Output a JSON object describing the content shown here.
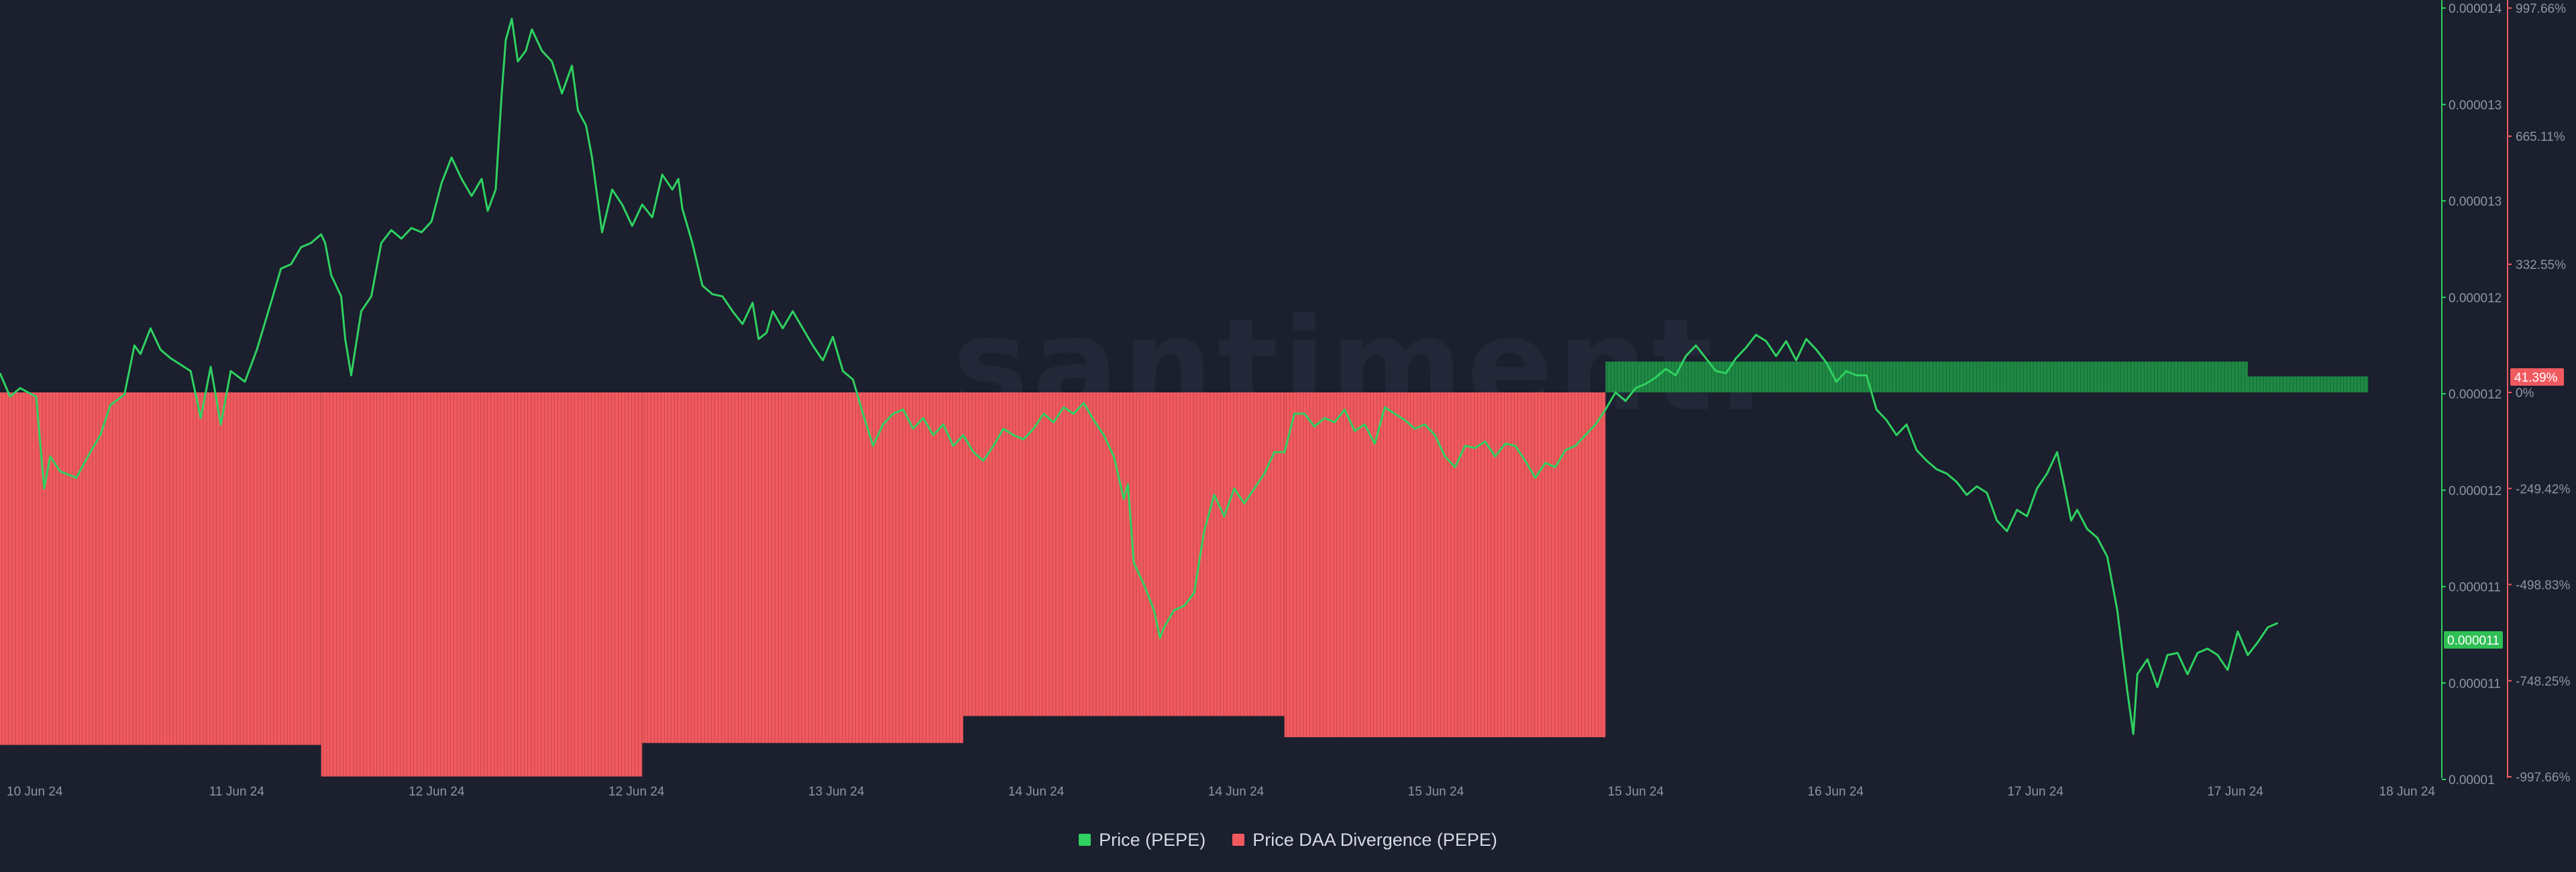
{
  "chart_data": {
    "type": "bar+line",
    "watermark": "santiment.",
    "colors": {
      "price": "#2fd160",
      "divergence_negative": "#f05a5f",
      "divergence_positive": "#1f8a44",
      "background": "#1b1f2e",
      "price_badge": "#2fbf55",
      "divergence_badge": "#f05a5f"
    },
    "x_axis": {
      "tick_labels": [
        "10 Jun 24",
        "11 Jun 24",
        "12 Jun 24",
        "12 Jun 24",
        "13 Jun 24",
        "14 Jun 24",
        "14 Jun 24",
        "15 Jun 24",
        "15 Jun 24",
        "16 Jun 24",
        "17 Jun 24",
        "17 Jun 24",
        "18 Jun 24"
      ]
    },
    "price_axis": {
      "side": "right",
      "tick_labels": [
        "0.000014",
        "0.000013",
        "0.000013",
        "0.000012",
        "0.000012",
        "0.000012",
        "0.000011",
        "0.000011",
        "0.00001"
      ],
      "range": [
        1.04e-05,
        1.4e-05
      ],
      "current_value_label": "0.000011"
    },
    "divergence_axis": {
      "side": "right",
      "unit": "%",
      "tick_labels": [
        "997.66%",
        "665.11%",
        "332.55%",
        "0%",
        "-249.42%",
        "-498.83%",
        "-748.25%",
        "-997.66%"
      ],
      "range": [
        -997.66,
        997.66
      ],
      "current_value_label": "41.39%"
    },
    "series": [
      {
        "name": "Price DAA Divergence (PEPE)",
        "kind": "stepped-bar",
        "segments": [
          {
            "from": 0.0,
            "to": 1.6,
            "value": -915
          },
          {
            "from": 1.6,
            "to": 3.2,
            "value": -997
          },
          {
            "from": 3.2,
            "to": 4.8,
            "value": -910
          },
          {
            "from": 4.8,
            "to": 6.4,
            "value": -840
          },
          {
            "from": 6.4,
            "to": 8.0,
            "value": -895
          },
          {
            "from": 8.0,
            "to": 11.2,
            "value": 80
          },
          {
            "from": 11.2,
            "to": 11.8,
            "value": 41.39
          }
        ]
      },
      {
        "name": "Price (PEPE)",
        "kind": "line",
        "anchors": [
          [
            0.0,
            1.229e-05
          ],
          [
            0.05,
            1.218e-05
          ],
          [
            0.1,
            1.222e-05
          ],
          [
            0.18,
            1.218e-05
          ],
          [
            0.22,
            1.175e-05
          ],
          [
            0.25,
            1.19e-05
          ],
          [
            0.3,
            1.183e-05
          ],
          [
            0.38,
            1.18e-05
          ],
          [
            0.45,
            1.192e-05
          ],
          [
            0.5,
            1.2e-05
          ],
          [
            0.55,
            1.214e-05
          ],
          [
            0.62,
            1.219e-05
          ],
          [
            0.67,
            1.242e-05
          ],
          [
            0.7,
            1.238e-05
          ],
          [
            0.75,
            1.25e-05
          ],
          [
            0.8,
            1.24e-05
          ],
          [
            0.85,
            1.236e-05
          ],
          [
            0.9,
            1.233e-05
          ],
          [
            0.95,
            1.23e-05
          ],
          [
            1.0,
            1.208e-05
          ],
          [
            1.05,
            1.232e-05
          ],
          [
            1.1,
            1.205e-05
          ],
          [
            1.15,
            1.23e-05
          ],
          [
            1.22,
            1.225e-05
          ],
          [
            1.28,
            1.24e-05
          ],
          [
            1.35,
            1.262e-05
          ],
          [
            1.4,
            1.278e-05
          ],
          [
            1.45,
            1.28e-05
          ],
          [
            1.5,
            1.288e-05
          ],
          [
            1.55,
            1.29e-05
          ],
          [
            1.6,
            1.294e-05
          ],
          [
            1.62,
            1.29e-05
          ],
          [
            1.65,
            1.275e-05
          ],
          [
            1.7,
            1.265e-05
          ],
          [
            1.72,
            1.245e-05
          ],
          [
            1.75,
            1.228e-05
          ],
          [
            1.8,
            1.258e-05
          ],
          [
            1.85,
            1.265e-05
          ],
          [
            1.9,
            1.29e-05
          ],
          [
            1.95,
            1.296e-05
          ],
          [
            2.0,
            1.292e-05
          ],
          [
            2.05,
            1.297e-05
          ],
          [
            2.1,
            1.295e-05
          ],
          [
            2.15,
            1.3e-05
          ],
          [
            2.2,
            1.318e-05
          ],
          [
            2.25,
            1.33e-05
          ],
          [
            2.3,
            1.32e-05
          ],
          [
            2.35,
            1.312e-05
          ],
          [
            2.4,
            1.32e-05
          ],
          [
            2.43,
            1.305e-05
          ],
          [
            2.47,
            1.315e-05
          ],
          [
            2.5,
            1.36e-05
          ],
          [
            2.52,
            1.385e-05
          ],
          [
            2.55,
            1.395e-05
          ],
          [
            2.58,
            1.375e-05
          ],
          [
            2.62,
            1.38e-05
          ],
          [
            2.65,
            1.39e-05
          ],
          [
            2.7,
            1.38e-05
          ],
          [
            2.75,
            1.375e-05
          ],
          [
            2.8,
            1.36e-05
          ],
          [
            2.85,
            1.373e-05
          ],
          [
            2.88,
            1.352e-05
          ],
          [
            2.92,
            1.345e-05
          ],
          [
            2.95,
            1.33e-05
          ],
          [
            3.0,
            1.295e-05
          ],
          [
            3.05,
            1.315e-05
          ],
          [
            3.1,
            1.308e-05
          ],
          [
            3.15,
            1.298e-05
          ],
          [
            3.2,
            1.308e-05
          ],
          [
            3.25,
            1.302e-05
          ],
          [
            3.3,
            1.322e-05
          ],
          [
            3.35,
            1.315e-05
          ],
          [
            3.38,
            1.32e-05
          ],
          [
            3.4,
            1.306e-05
          ],
          [
            3.45,
            1.29e-05
          ],
          [
            3.5,
            1.27e-05
          ],
          [
            3.55,
            1.266e-05
          ],
          [
            3.6,
            1.265e-05
          ],
          [
            3.65,
            1.258e-05
          ],
          [
            3.7,
            1.252e-05
          ],
          [
            3.75,
            1.262e-05
          ],
          [
            3.78,
            1.245e-05
          ],
          [
            3.82,
            1.248e-05
          ],
          [
            3.85,
            1.258e-05
          ],
          [
            3.9,
            1.25e-05
          ],
          [
            3.95,
            1.258e-05
          ],
          [
            4.0,
            1.25e-05
          ],
          [
            4.05,
            1.242e-05
          ],
          [
            4.1,
            1.235e-05
          ],
          [
            4.15,
            1.246e-05
          ],
          [
            4.2,
            1.23e-05
          ],
          [
            4.25,
            1.226e-05
          ],
          [
            4.3,
            1.21e-05
          ],
          [
            4.35,
            1.195e-05
          ],
          [
            4.4,
            1.205e-05
          ],
          [
            4.45,
            1.21e-05
          ],
          [
            4.5,
            1.212e-05
          ],
          [
            4.55,
            1.203e-05
          ],
          [
            4.6,
            1.208e-05
          ],
          [
            4.65,
            1.2e-05
          ],
          [
            4.7,
            1.205e-05
          ],
          [
            4.75,
            1.195e-05
          ],
          [
            4.8,
            1.2e-05
          ],
          [
            4.85,
            1.192e-05
          ],
          [
            4.9,
            1.188e-05
          ],
          [
            4.95,
            1.195e-05
          ],
          [
            5.0,
            1.203e-05
          ],
          [
            5.05,
            1.2e-05
          ],
          [
            5.1,
            1.198e-05
          ],
          [
            5.15,
            1.203e-05
          ],
          [
            5.2,
            1.21e-05
          ],
          [
            5.25,
            1.206e-05
          ],
          [
            5.3,
            1.213e-05
          ],
          [
            5.35,
            1.21e-05
          ],
          [
            5.4,
            1.215e-05
          ],
          [
            5.45,
            1.207e-05
          ],
          [
            5.5,
            1.2e-05
          ],
          [
            5.55,
            1.19e-05
          ],
          [
            5.6,
            1.17e-05
          ],
          [
            5.62,
            1.177e-05
          ],
          [
            5.65,
            1.14e-05
          ],
          [
            5.7,
            1.13e-05
          ],
          [
            5.75,
            1.118e-05
          ],
          [
            5.78,
            1.105e-05
          ],
          [
            5.8,
            1.11e-05
          ],
          [
            5.85,
            1.118e-05
          ],
          [
            5.9,
            1.12e-05
          ],
          [
            5.95,
            1.126e-05
          ],
          [
            6.0,
            1.155e-05
          ],
          [
            6.05,
            1.172e-05
          ],
          [
            6.1,
            1.162e-05
          ],
          [
            6.15,
            1.175e-05
          ],
          [
            6.2,
            1.168e-05
          ],
          [
            6.25,
            1.175e-05
          ],
          [
            6.3,
            1.182e-05
          ],
          [
            6.35,
            1.192e-05
          ],
          [
            6.4,
            1.192e-05
          ],
          [
            6.45,
            1.21e-05
          ],
          [
            6.5,
            1.21e-05
          ],
          [
            6.55,
            1.204e-05
          ],
          [
            6.6,
            1.208e-05
          ],
          [
            6.65,
            1.206e-05
          ],
          [
            6.7,
            1.212e-05
          ],
          [
            6.75,
            1.202e-05
          ],
          [
            6.8,
            1.205e-05
          ],
          [
            6.85,
            1.196e-05
          ],
          [
            6.9,
            1.213e-05
          ],
          [
            6.95,
            1.21e-05
          ],
          [
            7.0,
            1.207e-05
          ],
          [
            7.05,
            1.203e-05
          ],
          [
            7.1,
            1.205e-05
          ],
          [
            7.15,
            1.2e-05
          ],
          [
            7.2,
            1.19e-05
          ],
          [
            7.25,
            1.185e-05
          ],
          [
            7.3,
            1.195e-05
          ],
          [
            7.35,
            1.194e-05
          ],
          [
            7.4,
            1.197e-05
          ],
          [
            7.45,
            1.19e-05
          ],
          [
            7.5,
            1.196e-05
          ],
          [
            7.55,
            1.195e-05
          ],
          [
            7.6,
            1.188e-05
          ],
          [
            7.65,
            1.18e-05
          ],
          [
            7.7,
            1.187e-05
          ],
          [
            7.75,
            1.185e-05
          ],
          [
            7.8,
            1.193e-05
          ],
          [
            7.85,
            1.195e-05
          ],
          [
            7.9,
            1.2e-05
          ],
          [
            7.95,
            1.205e-05
          ],
          [
            8.0,
            1.212e-05
          ],
          [
            8.05,
            1.22e-05
          ],
          [
            8.1,
            1.216e-05
          ],
          [
            8.15,
            1.222e-05
          ],
          [
            8.2,
            1.224e-05
          ],
          [
            8.25,
            1.227e-05
          ],
          [
            8.3,
            1.231e-05
          ],
          [
            8.35,
            1.228e-05
          ],
          [
            8.4,
            1.237e-05
          ],
          [
            8.45,
            1.242e-05
          ],
          [
            8.5,
            1.236e-05
          ],
          [
            8.55,
            1.23e-05
          ],
          [
            8.6,
            1.229e-05
          ],
          [
            8.65,
            1.236e-05
          ],
          [
            8.7,
            1.241e-05
          ],
          [
            8.75,
            1.247e-05
          ],
          [
            8.8,
            1.244e-05
          ],
          [
            8.85,
            1.237e-05
          ],
          [
            8.9,
            1.244e-05
          ],
          [
            8.95,
            1.235e-05
          ],
          [
            9.0,
            1.245e-05
          ],
          [
            9.05,
            1.24e-05
          ],
          [
            9.1,
            1.234e-05
          ],
          [
            9.15,
            1.225e-05
          ],
          [
            9.2,
            1.23e-05
          ],
          [
            9.25,
            1.228e-05
          ],
          [
            9.3,
            1.228e-05
          ],
          [
            9.35,
            1.212e-05
          ],
          [
            9.4,
            1.207e-05
          ],
          [
            9.45,
            1.2e-05
          ],
          [
            9.5,
            1.205e-05
          ],
          [
            9.55,
            1.193e-05
          ],
          [
            9.6,
            1.188e-05
          ],
          [
            9.65,
            1.184e-05
          ],
          [
            9.7,
            1.182e-05
          ],
          [
            9.75,
            1.178e-05
          ],
          [
            9.8,
            1.172e-05
          ],
          [
            9.85,
            1.176e-05
          ],
          [
            9.9,
            1.173e-05
          ],
          [
            9.95,
            1.16e-05
          ],
          [
            10.0,
            1.155e-05
          ],
          [
            10.05,
            1.165e-05
          ],
          [
            10.1,
            1.162e-05
          ],
          [
            10.15,
            1.175e-05
          ],
          [
            10.2,
            1.182e-05
          ],
          [
            10.25,
            1.192e-05
          ],
          [
            10.28,
            1.179e-05
          ],
          [
            10.32,
            1.16e-05
          ],
          [
            10.35,
            1.165e-05
          ],
          [
            10.4,
            1.156e-05
          ],
          [
            10.45,
            1.152e-05
          ],
          [
            10.5,
            1.143e-05
          ],
          [
            10.55,
            1.118e-05
          ],
          [
            10.6,
            1.08e-05
          ],
          [
            10.63,
            1.06e-05
          ],
          [
            10.65,
            1.088e-05
          ],
          [
            10.7,
            1.095e-05
          ],
          [
            10.75,
            1.082e-05
          ],
          [
            10.8,
            1.097e-05
          ],
          [
            10.85,
            1.098e-05
          ],
          [
            10.9,
            1.088e-05
          ],
          [
            10.95,
            1.098e-05
          ],
          [
            11.0,
            1.1e-05
          ],
          [
            11.05,
            1.097e-05
          ],
          [
            11.1,
            1.09e-05
          ],
          [
            11.15,
            1.108e-05
          ],
          [
            11.2,
            1.097e-05
          ],
          [
            11.25,
            1.103e-05
          ],
          [
            11.3,
            1.11e-05
          ],
          [
            11.35,
            1.112e-05
          ]
        ]
      }
    ]
  },
  "legend": [
    {
      "label": "Price (PEPE)",
      "color": "#2fd160"
    },
    {
      "label": "Price DAA Divergence (PEPE)",
      "color": "#f05a5f"
    }
  ]
}
